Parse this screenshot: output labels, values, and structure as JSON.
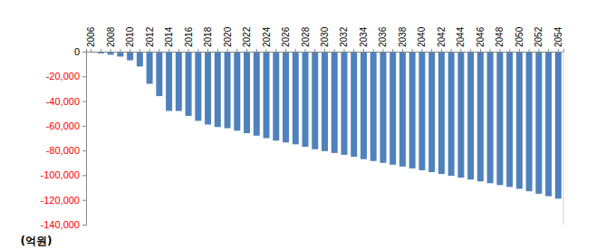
{
  "chart_data": {
    "type": "bar",
    "ylabel": "(억원)",
    "categories": [
      "2006",
      null,
      "2008",
      null,
      "2010",
      null,
      "2012",
      null,
      "2014",
      null,
      "2016",
      null,
      "2018",
      null,
      "2020",
      null,
      "2022",
      null,
      "2024",
      null,
      "2026",
      null,
      "2028",
      null,
      "2030",
      null,
      "2032",
      null,
      "2034",
      null,
      "2036",
      null,
      "2038",
      null,
      "2040",
      null,
      "2042",
      null,
      "2044",
      null,
      "2046",
      null,
      "2048",
      null,
      "2050",
      null,
      "2052",
      null,
      "2054"
    ],
    "values": [
      -500,
      -1500,
      -2500,
      -4000,
      -7000,
      -12000,
      -26000,
      -36000,
      -48000,
      -48000,
      -52000,
      -56000,
      -59000,
      -61000,
      -62000,
      -64000,
      -66000,
      -68000,
      -70000,
      -72000,
      -73500,
      -75000,
      -77000,
      -79000,
      -80500,
      -82000,
      -83500,
      -85000,
      -87000,
      -88500,
      -90000,
      -91500,
      -93000,
      -94500,
      -96000,
      -97500,
      -99000,
      -100500,
      -102000,
      -103500,
      -105000,
      -106500,
      -108000,
      -109500,
      -111000,
      -113000,
      -115000,
      -117000,
      -119000
    ],
    "color": "#4f81bd",
    "ylim": [
      -140000,
      0
    ],
    "yticks": [
      0,
      {
        "value": -20000,
        "label": "-20,000"
      },
      {
        "value": -40000,
        "label": "-40,000"
      },
      {
        "value": -60000,
        "label": "-60,000"
      },
      {
        "value": -80000,
        "label": "-80,000"
      },
      {
        "value": -100000,
        "label": "-100,000"
      },
      {
        "value": -120000,
        "label": "-120,000"
      },
      {
        "value": -140000,
        "label": "-140,000"
      }
    ],
    "grid": false
  }
}
